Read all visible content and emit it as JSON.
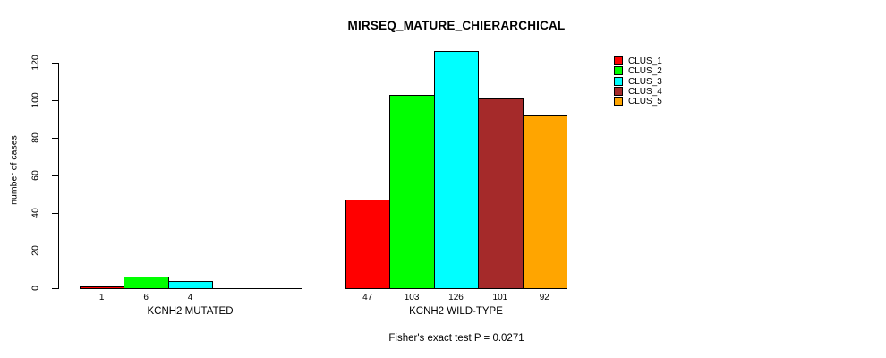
{
  "page": {
    "background_color": "#ffffff",
    "text_color": "#000000",
    "axis_color": "#000000"
  },
  "chart_data": {
    "type": "bar",
    "title": "MIRSEQ_MATURE_CHIERARCHICAL",
    "xlabel": "",
    "ylabel": "number of cases",
    "ylim": [
      0,
      120
    ],
    "yticks": [
      0,
      20,
      40,
      60,
      80,
      100,
      120
    ],
    "grid": false,
    "legend_position": "top-right",
    "categories": [
      "KCNH2 MUTATED",
      "KCNH2 WILD-TYPE"
    ],
    "series": [
      {
        "name": "CLUS_1",
        "color": "#FF0000",
        "values": [
          1,
          47
        ]
      },
      {
        "name": "CLUS_2",
        "color": "#00FF00",
        "values": [
          6,
          103
        ]
      },
      {
        "name": "CLUS_3",
        "color": "#00FFFF",
        "values": [
          4,
          126
        ]
      },
      {
        "name": "CLUS_4",
        "color": "#A52A2A",
        "values": [
          0,
          101
        ]
      },
      {
        "name": "CLUS_5",
        "color": "#FFA500",
        "values": [
          0,
          92
        ]
      }
    ],
    "value_labels": [
      [
        "1",
        "6",
        "4",
        "",
        ""
      ],
      [
        "47",
        "103",
        "126",
        "101",
        "92"
      ]
    ],
    "annotation": "Fisher's exact test P = 0.0271"
  }
}
